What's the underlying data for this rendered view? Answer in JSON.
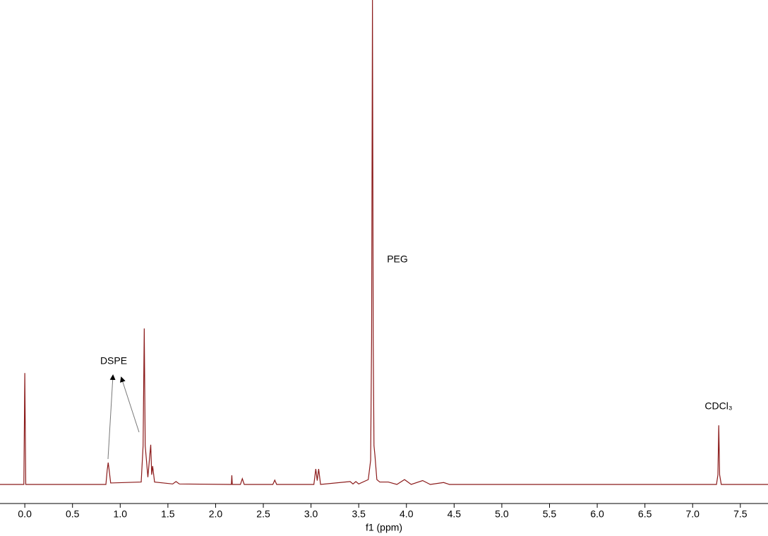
{
  "chart_data": {
    "type": "line",
    "x_label": "f1 (ppm)",
    "annotations": [
      "PEG",
      "DSPE",
      "CDCl₃"
    ],
    "xlim": [
      -0.26,
      7.79
    ],
    "ylim": [
      0,
      100
    ],
    "xticks": [
      {
        "value": 0,
        "label": "0.0"
      },
      0.5,
      {
        "value": 1,
        "label": "1.0"
      },
      1.5,
      {
        "value": 2,
        "label": "2.0"
      },
      2.5,
      {
        "value": 3,
        "label": "3.0"
      },
      3.5,
      {
        "value": 4,
        "label": "4.0"
      },
      4.5,
      {
        "value": 5,
        "label": "5.0"
      },
      5.5,
      {
        "value": 6,
        "label": "6.0"
      },
      6.5,
      {
        "value": 7,
        "label": "7.0"
      },
      7.5
    ],
    "color": "#8b1a1a",
    "x": [
      -0.26,
      -0.01,
      0.0,
      0.01,
      0.85,
      0.864,
      0.874,
      0.884,
      0.9,
      1.22,
      1.24,
      1.252,
      1.262,
      1.29,
      1.31,
      1.32,
      1.33,
      1.34,
      1.36,
      1.55,
      1.585,
      1.62,
      2.165,
      2.17,
      2.175,
      2.26,
      2.28,
      2.3,
      2.6,
      2.62,
      2.64,
      3.03,
      3.05,
      3.065,
      3.08,
      3.1,
      3.41,
      3.44,
      3.47,
      3.5,
      3.6,
      3.625,
      3.635,
      3.644,
      3.652,
      3.66,
      3.67,
      3.69,
      3.72,
      3.81,
      3.9,
      3.98,
      4.05,
      4.17,
      4.25,
      4.39,
      4.45,
      7.25,
      7.265,
      7.274,
      7.283,
      7.3,
      7.79
    ],
    "values": [
      0,
      0,
      23,
      0,
      0,
      3,
      4.5,
      3,
      0.3,
      0.5,
      8,
      32.2,
      8,
      1.5,
      6,
      8.2,
      2,
      3.8,
      0.5,
      0.1,
      0.6,
      0.1,
      0,
      1.9,
      0,
      0,
      1.2,
      0,
      0,
      0.9,
      0,
      0,
      3.2,
      0.8,
      3.2,
      0,
      0.6,
      0.1,
      0.6,
      0.1,
      1,
      5,
      30,
      100,
      30,
      8,
      6,
      1,
      0.5,
      0.5,
      0,
      1,
      0,
      0.8,
      0,
      0.4,
      0,
      0,
      2,
      12.2,
      2,
      0,
      0
    ]
  }
}
